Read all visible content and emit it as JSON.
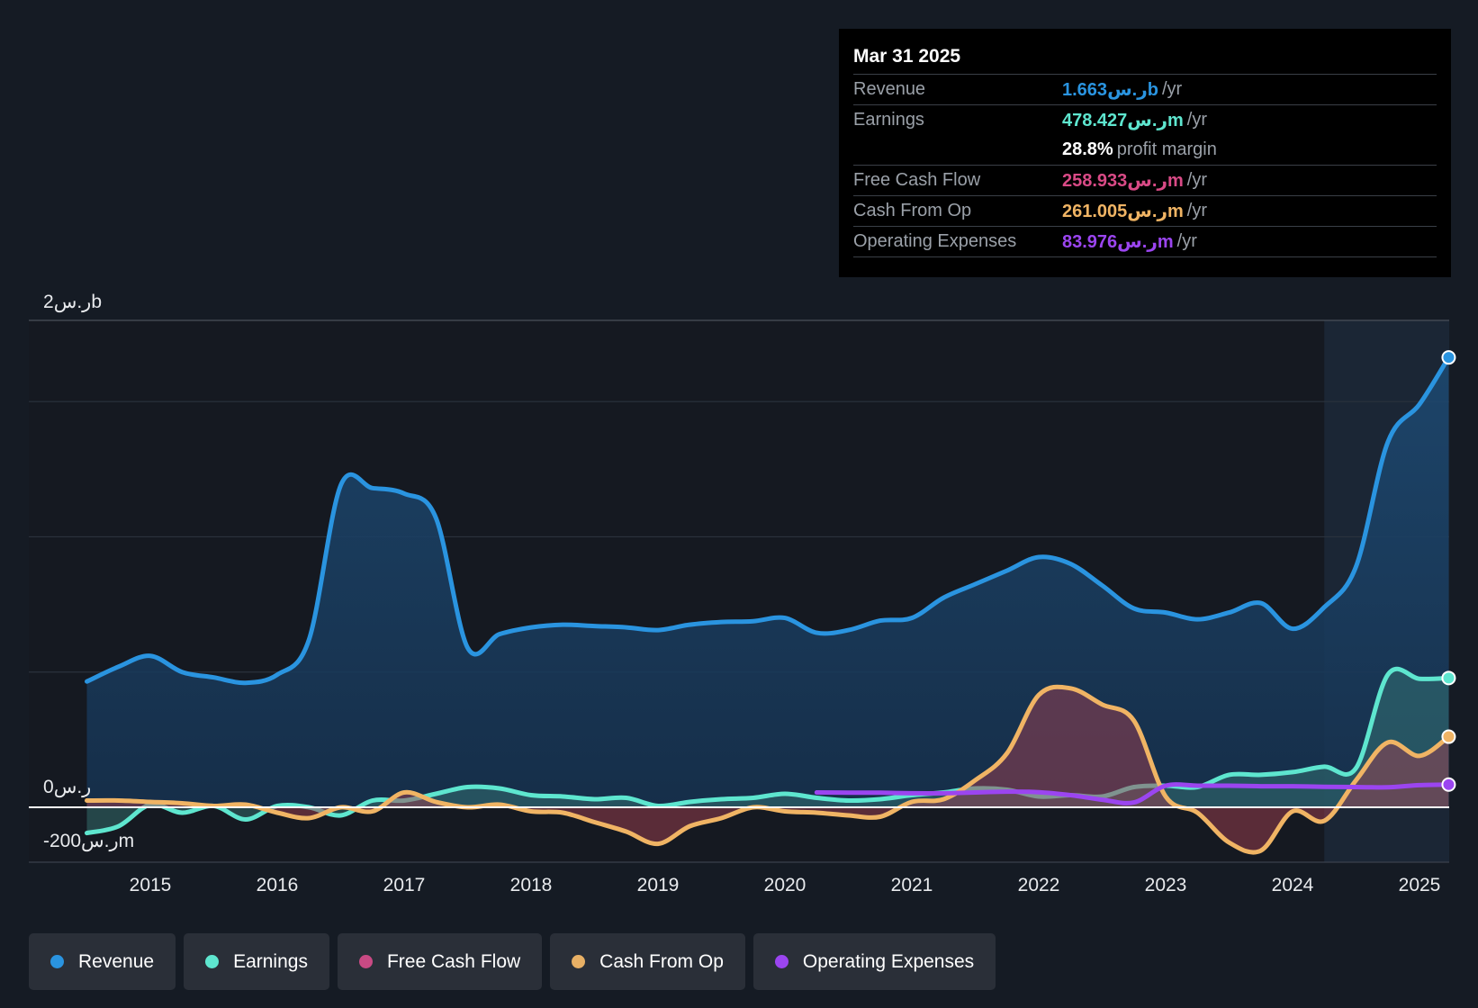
{
  "tooltip": {
    "date": "Mar 31 2025",
    "rows": [
      {
        "label": "Revenue",
        "value": "1.663ر.سb",
        "unit": "/yr",
        "color": "#2a94e0"
      },
      {
        "label": "Earnings",
        "value": "478.427ر.سm",
        "unit": "/yr",
        "color": "#5ee6cf"
      },
      {
        "label": "",
        "value": "28.8%",
        "unit": "profit margin",
        "color": "#ffffff"
      },
      {
        "label": "Free Cash Flow",
        "value": "258.933ر.سm",
        "unit": "/yr",
        "color": "#d94a86"
      },
      {
        "label": "Cash From Op",
        "value": "261.005ر.سm",
        "unit": "/yr",
        "color": "#f0b464"
      },
      {
        "label": "Operating Expenses",
        "value": "83.976ر.سm",
        "unit": "/yr",
        "color": "#9b45f0"
      }
    ]
  },
  "legend": [
    {
      "label": "Revenue",
      "color": "#2a94e0"
    },
    {
      "label": "Earnings",
      "color": "#5ee6cf"
    },
    {
      "label": "Free Cash Flow",
      "color": "#c94a84"
    },
    {
      "label": "Cash From Op",
      "color": "#e8b065"
    },
    {
      "label": "Operating Expenses",
      "color": "#9b45f0"
    }
  ],
  "chart_data": {
    "type": "line",
    "title": "",
    "xlabel": "",
    "ylabel": "",
    "y_axis_labels": [
      "2ر.سb",
      "0ر.س",
      "-200ر.سm"
    ],
    "x_ticks": [
      "2015",
      "2016",
      "2017",
      "2018",
      "2019",
      "2020",
      "2021",
      "2022",
      "2023",
      "2024",
      "2025"
    ],
    "x_tick_values": [
      2015,
      2016,
      2017,
      2018,
      2019,
      2020,
      2021,
      2022,
      2023,
      2024,
      2025
    ],
    "xlim": [
      2014.05,
      2025.23
    ],
    "ylim": [
      -200,
      1800
    ],
    "gridlines_y": [
      0,
      500,
      1000,
      1500,
      1800
    ],
    "highlight_from": 2024.25,
    "units": "ر.سm",
    "series": [
      {
        "name": "Revenue",
        "color": "#2a94e0",
        "fill": true,
        "points": [
          [
            2014.5,
            465
          ],
          [
            2014.75,
            520
          ],
          [
            2015.0,
            560
          ],
          [
            2015.25,
            500
          ],
          [
            2015.5,
            480
          ],
          [
            2015.75,
            460
          ],
          [
            2016.0,
            490
          ],
          [
            2016.25,
            620
          ],
          [
            2016.5,
            1190
          ],
          [
            2016.75,
            1180
          ],
          [
            2017.0,
            1160
          ],
          [
            2017.25,
            1070
          ],
          [
            2017.5,
            590
          ],
          [
            2017.75,
            640
          ],
          [
            2018.0,
            665
          ],
          [
            2018.25,
            675
          ],
          [
            2018.5,
            670
          ],
          [
            2018.75,
            665
          ],
          [
            2019.0,
            655
          ],
          [
            2019.25,
            675
          ],
          [
            2019.5,
            685
          ],
          [
            2019.75,
            688
          ],
          [
            2020.0,
            700
          ],
          [
            2020.25,
            645
          ],
          [
            2020.5,
            655
          ],
          [
            2020.75,
            690
          ],
          [
            2021.0,
            700
          ],
          [
            2021.25,
            775
          ],
          [
            2021.5,
            825
          ],
          [
            2021.75,
            875
          ],
          [
            2022.0,
            925
          ],
          [
            2022.25,
            900
          ],
          [
            2022.5,
            820
          ],
          [
            2022.75,
            735
          ],
          [
            2023.0,
            720
          ],
          [
            2023.25,
            695
          ],
          [
            2023.5,
            720
          ],
          [
            2023.75,
            755
          ],
          [
            2024.0,
            660
          ],
          [
            2024.25,
            740
          ],
          [
            2024.5,
            890
          ],
          [
            2024.75,
            1350
          ],
          [
            2025.0,
            1490
          ],
          [
            2025.23,
            1663
          ]
        ]
      },
      {
        "name": "Earnings",
        "color": "#5ee6cf",
        "fill": true,
        "points": [
          [
            2014.5,
            -95
          ],
          [
            2014.75,
            -70
          ],
          [
            2015.0,
            10
          ],
          [
            2015.25,
            -20
          ],
          [
            2015.5,
            5
          ],
          [
            2015.75,
            -45
          ],
          [
            2016.0,
            5
          ],
          [
            2016.25,
            0
          ],
          [
            2016.5,
            -30
          ],
          [
            2016.75,
            25
          ],
          [
            2017.0,
            25
          ],
          [
            2017.25,
            50
          ],
          [
            2017.5,
            75
          ],
          [
            2017.75,
            70
          ],
          [
            2018.0,
            45
          ],
          [
            2018.25,
            40
          ],
          [
            2018.5,
            30
          ],
          [
            2018.75,
            35
          ],
          [
            2019.0,
            5
          ],
          [
            2019.25,
            20
          ],
          [
            2019.5,
            30
          ],
          [
            2019.75,
            35
          ],
          [
            2020.0,
            50
          ],
          [
            2020.25,
            35
          ],
          [
            2020.5,
            25
          ],
          [
            2020.75,
            30
          ],
          [
            2021.0,
            45
          ],
          [
            2021.25,
            55
          ],
          [
            2021.5,
            70
          ],
          [
            2021.75,
            65
          ],
          [
            2022.0,
            40
          ],
          [
            2022.25,
            45
          ],
          [
            2022.5,
            40
          ],
          [
            2022.75,
            75
          ],
          [
            2023.0,
            80
          ],
          [
            2023.25,
            75
          ],
          [
            2023.5,
            120
          ],
          [
            2023.75,
            120
          ],
          [
            2024.0,
            130
          ],
          [
            2024.25,
            150
          ],
          [
            2024.5,
            145
          ],
          [
            2024.75,
            490
          ],
          [
            2025.0,
            475
          ],
          [
            2025.23,
            478
          ]
        ]
      },
      {
        "name": "Free Cash Flow",
        "color": "#d94a86",
        "fill": true,
        "points": [
          [
            2014.5,
            25
          ],
          [
            2014.75,
            25
          ],
          [
            2015.0,
            20
          ],
          [
            2015.25,
            15
          ],
          [
            2015.5,
            5
          ],
          [
            2015.75,
            10
          ],
          [
            2016.0,
            -20
          ],
          [
            2016.25,
            -40
          ],
          [
            2016.5,
            0
          ],
          [
            2016.75,
            -15
          ],
          [
            2017.0,
            55
          ],
          [
            2017.25,
            20
          ],
          [
            2017.5,
            0
          ],
          [
            2017.75,
            10
          ],
          [
            2018.0,
            -15
          ],
          [
            2018.25,
            -20
          ],
          [
            2018.5,
            -55
          ],
          [
            2018.75,
            -90
          ],
          [
            2019.0,
            -135
          ],
          [
            2019.25,
            -70
          ],
          [
            2019.5,
            -40
          ],
          [
            2019.75,
            0
          ],
          [
            2020.0,
            -15
          ],
          [
            2020.25,
            -20
          ],
          [
            2020.5,
            -30
          ],
          [
            2020.75,
            -35
          ],
          [
            2021.0,
            20
          ],
          [
            2021.25,
            30
          ],
          [
            2021.5,
            100
          ],
          [
            2021.75,
            200
          ],
          [
            2022.0,
            415
          ],
          [
            2022.25,
            440
          ],
          [
            2022.5,
            380
          ],
          [
            2022.75,
            320
          ],
          [
            2023.0,
            40
          ],
          [
            2023.25,
            -20
          ],
          [
            2023.5,
            -130
          ],
          [
            2023.75,
            -160
          ],
          [
            2024.0,
            -15
          ],
          [
            2024.25,
            -50
          ],
          [
            2024.5,
            100
          ],
          [
            2024.75,
            240
          ],
          [
            2025.0,
            190
          ],
          [
            2025.23,
            259
          ]
        ]
      },
      {
        "name": "Cash From Op",
        "color": "#f0b464",
        "fill": false,
        "points": [
          [
            2014.5,
            25
          ],
          [
            2014.75,
            25
          ],
          [
            2015.0,
            20
          ],
          [
            2015.25,
            15
          ],
          [
            2015.5,
            5
          ],
          [
            2015.75,
            10
          ],
          [
            2016.0,
            -20
          ],
          [
            2016.25,
            -40
          ],
          [
            2016.5,
            0
          ],
          [
            2016.75,
            -15
          ],
          [
            2017.0,
            55
          ],
          [
            2017.25,
            20
          ],
          [
            2017.5,
            0
          ],
          [
            2017.75,
            10
          ],
          [
            2018.0,
            -15
          ],
          [
            2018.25,
            -20
          ],
          [
            2018.5,
            -55
          ],
          [
            2018.75,
            -90
          ],
          [
            2019.0,
            -135
          ],
          [
            2019.25,
            -70
          ],
          [
            2019.5,
            -40
          ],
          [
            2019.75,
            0
          ],
          [
            2020.0,
            -15
          ],
          [
            2020.25,
            -20
          ],
          [
            2020.5,
            -30
          ],
          [
            2020.75,
            -35
          ],
          [
            2021.0,
            20
          ],
          [
            2021.25,
            30
          ],
          [
            2021.5,
            100
          ],
          [
            2021.75,
            200
          ],
          [
            2022.0,
            415
          ],
          [
            2022.25,
            440
          ],
          [
            2022.5,
            380
          ],
          [
            2022.75,
            320
          ],
          [
            2023.0,
            40
          ],
          [
            2023.25,
            -20
          ],
          [
            2023.5,
            -130
          ],
          [
            2023.75,
            -160
          ],
          [
            2024.0,
            -15
          ],
          [
            2024.25,
            -50
          ],
          [
            2024.5,
            100
          ],
          [
            2024.75,
            240
          ],
          [
            2025.0,
            190
          ],
          [
            2025.23,
            261
          ]
        ]
      },
      {
        "name": "Operating Expenses",
        "color": "#9b45f0",
        "fill": false,
        "points": [
          [
            2020.25,
            55
          ],
          [
            2020.5,
            54
          ],
          [
            2020.75,
            54
          ],
          [
            2021.0,
            52
          ],
          [
            2021.25,
            52
          ],
          [
            2021.5,
            55
          ],
          [
            2021.75,
            58
          ],
          [
            2022.0,
            56
          ],
          [
            2022.25,
            45
          ],
          [
            2022.5,
            28
          ],
          [
            2022.75,
            18
          ],
          [
            2023.0,
            80
          ],
          [
            2023.25,
            80
          ],
          [
            2023.5,
            80
          ],
          [
            2023.75,
            78
          ],
          [
            2024.0,
            78
          ],
          [
            2024.25,
            76
          ],
          [
            2024.5,
            75
          ],
          [
            2024.75,
            74
          ],
          [
            2025.0,
            82
          ],
          [
            2025.23,
            84
          ]
        ]
      }
    ]
  }
}
